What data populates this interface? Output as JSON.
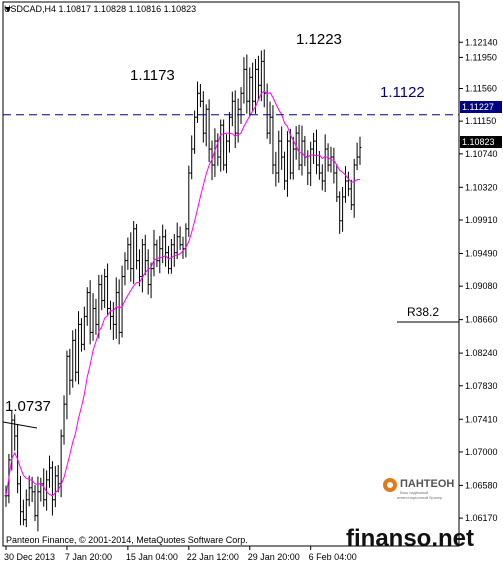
{
  "chart_data": {
    "type": "bar",
    "subtype": "ohlc",
    "title": "USDCAD,H4  1.10817 1.10828 1.10816 1.10823",
    "ylim": [
      1.0582,
      1.1262
    ],
    "y_ticks": [
      "1.12140",
      "1.11950",
      "1.11560",
      "1.11150",
      "1.10740",
      "1.10320",
      "1.09910",
      "1.09490",
      "1.09080",
      "1.08660",
      "1.08240",
      "1.07830",
      "1.07410",
      "1.07000",
      "1.06580",
      "1.06170"
    ],
    "x_ticks": [
      {
        "label": "30 Dec 2013",
        "bar": 0
      },
      {
        "label": "7 Jan 20:00",
        "bar": 21
      },
      {
        "label": "15 Jan 04:00",
        "bar": 42
      },
      {
        "label": "22 Jan 12:00",
        "bar": 63
      },
      {
        "label": "29 Jan 20:00",
        "bar": 84
      },
      {
        "label": "6 Feb 04:00",
        "bar": 105
      }
    ],
    "current_price": "1.10823",
    "hline_price": "1.11227",
    "hline_value": 1.1123,
    "grid": false,
    "close": [
      1.0645,
      1.069,
      1.074,
      1.072,
      1.066,
      1.0625,
      1.0615,
      1.064,
      1.0655,
      1.065,
      1.062,
      1.065,
      1.066,
      1.064,
      1.0665,
      1.068,
      1.064,
      1.067,
      1.066,
      1.072,
      1.076,
      1.082,
      1.079,
      1.084,
      1.08,
      1.086,
      1.0835,
      1.087,
      1.09,
      1.085,
      1.088,
      1.086,
      1.091,
      1.089,
      1.092,
      1.088,
      1.087,
      1.086,
      1.09,
      1.085,
      1.092,
      1.094,
      1.096,
      1.093,
      1.098,
      1.094,
      1.092,
      1.096,
      1.094,
      1.091,
      1.093,
      1.096,
      1.094,
      1.0955,
      1.097,
      1.095,
      1.093,
      1.096,
      1.095,
      1.097,
      1.096,
      1.0955,
      1.098,
      1.105,
      1.108,
      1.112,
      1.115,
      1.114,
      1.11,
      1.113,
      1.108,
      1.106,
      1.109,
      1.107,
      1.111,
      1.106,
      1.109,
      1.112,
      1.114,
      1.11,
      1.113,
      1.115,
      1.118,
      1.114,
      1.117,
      1.114,
      1.118,
      1.116,
      1.119,
      1.115,
      1.11,
      1.112,
      1.106,
      1.105,
      1.109,
      1.107,
      1.104,
      1.109,
      1.105,
      1.108,
      1.11,
      1.106,
      1.109,
      1.107,
      1.105,
      1.108,
      1.109,
      1.106,
      1.105,
      1.104,
      1.108,
      1.106,
      1.107,
      1.105,
      1.102,
      1.099,
      1.102,
      1.104,
      1.103,
      1.101,
      1.106,
      1.107,
      1.1082
    ],
    "ma_color": "#ff00ff",
    "bar_color": "#000000"
  },
  "annotations": {
    "a1": "1.1223",
    "a2": "1.1173",
    "a3": "1.1122",
    "a4": "1.0737",
    "a5": "R38.2"
  },
  "watermark": {
    "logo": "ПАНТЕОН",
    "logo_sub1": "Ваш надёжный",
    "logo_sub2": "инвестиционный брокер",
    "copyright": "Panteon Finance, © 2001-2014, MetaQuotes Software Corp.",
    "site": "finanso.net"
  }
}
